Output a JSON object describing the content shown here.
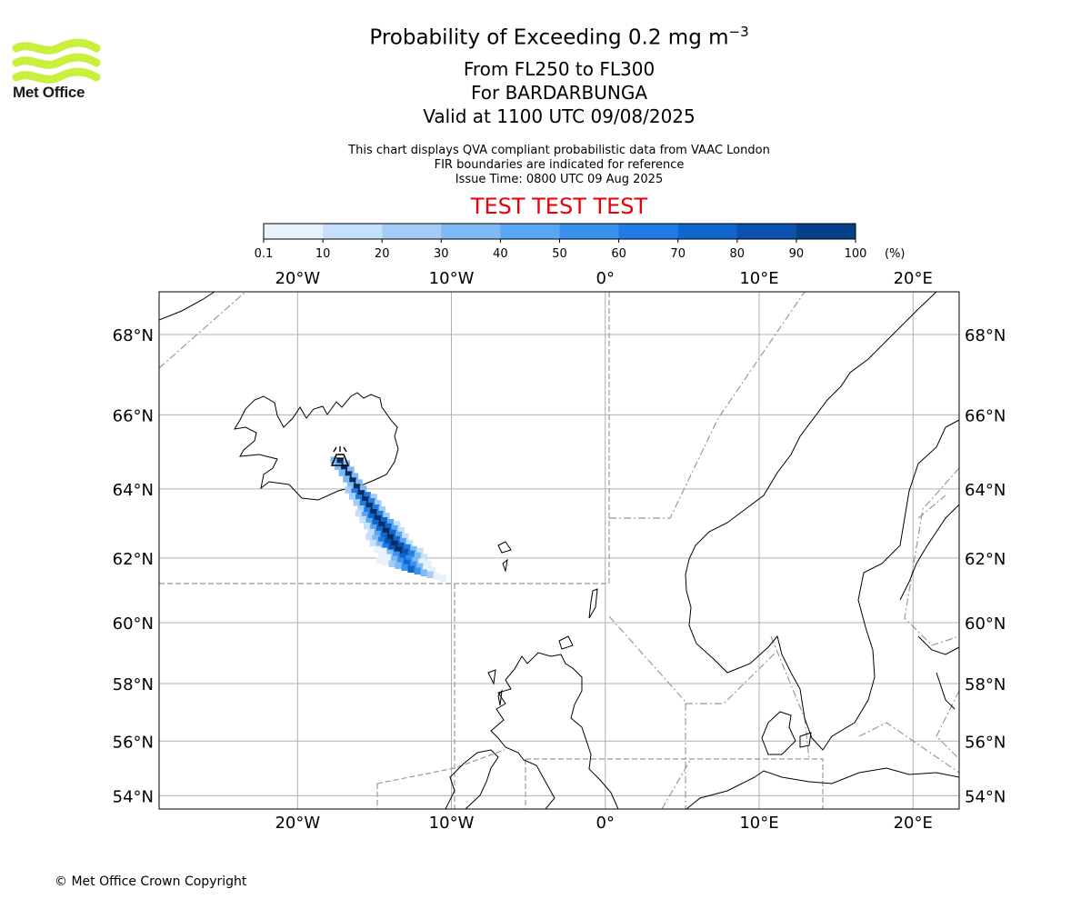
{
  "title": {
    "line1": "Probability of Exceeding 0.2 mg m",
    "line1_superscript": "−3",
    "line2": "From FL250 to FL300",
    "line3": "For BARDARBUNGA",
    "line4": "Valid at 1100 UTC 09/08/2025"
  },
  "notes": [
    "This chart displays QVA compliant probabilistic data from VAAC London",
    "FIR boundaries are indicated for reference",
    "Issue Time: 0800 UTC 09 Aug 2025"
  ],
  "test_banner": "TEST TEST TEST",
  "logo": {
    "text": "Met Office",
    "color": "#c8f03c",
    "icon": "met-office-wave-logo"
  },
  "copyright": "© Met Office Crown Copyright",
  "colorbar": {
    "unit_label": "(%)",
    "ticks": [
      "0.1",
      "10",
      "20",
      "30",
      "40",
      "50",
      "60",
      "70",
      "80",
      "90",
      "100"
    ],
    "colors": [
      "#e8f2fd",
      "#c6e0fb",
      "#a3cdf8",
      "#7fbaf5",
      "#5ba6f2",
      "#3a91ed",
      "#1e7ce4",
      "#0f66cd",
      "#0a52ad",
      "#073f88",
      "#052d61"
    ]
  },
  "map": {
    "projection": "lat-lon (Plate Carrée)",
    "lon_range": [
      -29,
      23
    ],
    "lat_range": [
      53.5,
      69
    ],
    "lon_ticks": [
      {
        "value": -20,
        "label": "20°W"
      },
      {
        "value": -10,
        "label": "10°W"
      },
      {
        "value": 0,
        "label": "0°"
      },
      {
        "value": 10,
        "label": "10°E"
      },
      {
        "value": 20,
        "label": "20°E"
      }
    ],
    "lat_ticks": [
      {
        "value": 68,
        "label": "68°N"
      },
      {
        "value": 66,
        "label": "66°N"
      },
      {
        "value": 64,
        "label": "64°N"
      },
      {
        "value": 62,
        "label": "62°N"
      },
      {
        "value": 60,
        "label": "60°N"
      },
      {
        "value": 58,
        "label": "58°N"
      },
      {
        "value": 56,
        "label": "56°N"
      },
      {
        "value": 54,
        "label": "54°N"
      }
    ],
    "grid": true,
    "volcano": {
      "name": "BARDARBUNGA",
      "lon": -17.5,
      "lat": 64.6,
      "icon": "volcano-icon"
    },
    "plume_colors": {
      "low": "#c6e0fb",
      "mid": "#3a91ed",
      "high": "#052d61"
    }
  }
}
